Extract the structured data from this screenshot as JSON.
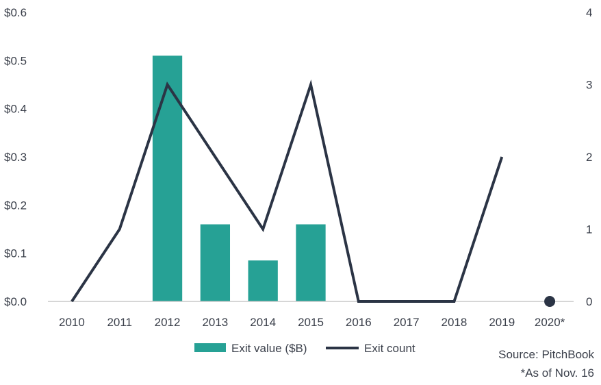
{
  "chart_data": {
    "type": "bar+line",
    "categories": [
      "2010",
      "2011",
      "2012",
      "2013",
      "2014",
      "2015",
      "2016",
      "2017",
      "2018",
      "2019",
      "2020*"
    ],
    "series": [
      {
        "name": "Exit value ($B)",
        "type": "bar",
        "axis": "left",
        "values": [
          0,
          0,
          0.51,
          0.16,
          0.085,
          0.16,
          0,
          0,
          0,
          0,
          0
        ]
      },
      {
        "name": "Exit count",
        "type": "line",
        "axis": "right",
        "values": [
          0,
          1,
          3,
          2,
          1,
          3,
          0,
          0,
          0,
          2,
          0
        ]
      }
    ],
    "line_segments": [
      [
        0,
        9
      ]
    ],
    "isolated_points": [
      10
    ],
    "y_left": {
      "ylim": [
        0,
        0.6
      ],
      "ticks": [
        "$0.0",
        "$0.1",
        "$0.2",
        "$0.3",
        "$0.4",
        "$0.5",
        "$0.6"
      ]
    },
    "y_right": {
      "ylim": [
        0,
        4
      ],
      "ticks": [
        "0",
        "1",
        "2",
        "3",
        "4"
      ]
    },
    "grid": false,
    "legend": "bottom-center",
    "colors": {
      "bar": "#26a195",
      "line": "#2b3445",
      "axis": "#c8c8c8"
    }
  },
  "notes": {
    "source": "Source: PitchBook",
    "footnote": "*As of Nov. 16"
  }
}
